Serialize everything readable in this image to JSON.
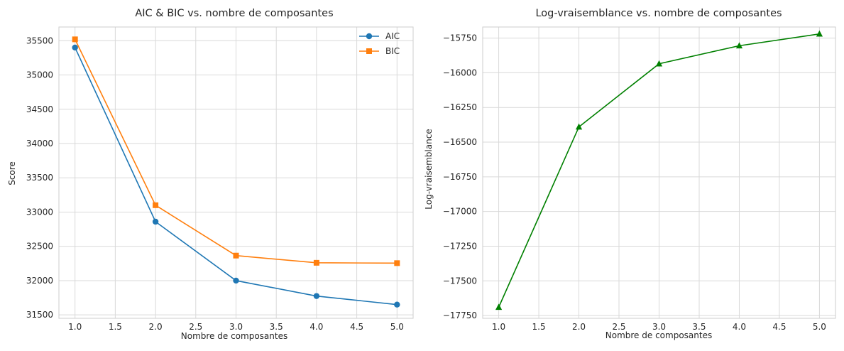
{
  "chart_data": [
    {
      "type": "line",
      "title": "AIC & BIC vs. nombre de composantes",
      "xlabel": "Nombre de composantes",
      "ylabel": "Score",
      "xlim": [
        0.8,
        5.2
      ],
      "ylim": [
        31450,
        35700
      ],
      "xticks": [
        1.0,
        1.5,
        2.0,
        2.5,
        3.0,
        3.5,
        4.0,
        4.5,
        5.0
      ],
      "xtick_labels": [
        "1.0",
        "1.5",
        "2.0",
        "2.5",
        "3.0",
        "3.5",
        "4.0",
        "4.5",
        "5.0"
      ],
      "yticks": [
        31500,
        32000,
        32500,
        33000,
        33500,
        34000,
        34500,
        35000,
        35500
      ],
      "ytick_labels": [
        "31500",
        "32000",
        "32500",
        "33000",
        "33500",
        "34000",
        "34500",
        "35000",
        "35500"
      ],
      "grid": true,
      "legend": "top-right",
      "x": [
        1,
        2,
        3,
        4,
        5
      ],
      "series": [
        {
          "name": "AIC",
          "values": [
            35400,
            32860,
            32000,
            31775,
            31650
          ],
          "color": "#1f77b4",
          "marker": "circle"
        },
        {
          "name": "BIC",
          "values": [
            35520,
            33100,
            32365,
            32260,
            32255
          ],
          "color": "#ff7f0e",
          "marker": "square"
        }
      ]
    },
    {
      "type": "line",
      "title": "Log-vraisemblance vs. nombre de composantes",
      "xlabel": "Nombre de composantes",
      "ylabel": "Log-vraisemblance",
      "xlim": [
        0.8,
        5.2
      ],
      "ylim": [
        -17770,
        -15670
      ],
      "xticks": [
        1.0,
        1.5,
        2.0,
        2.5,
        3.0,
        3.5,
        4.0,
        4.5,
        5.0
      ],
      "xtick_labels": [
        "1.0",
        "1.5",
        "2.0",
        "2.5",
        "3.0",
        "3.5",
        "4.0",
        "4.5",
        "5.0"
      ],
      "yticks": [
        -17750,
        -17500,
        -17250,
        -17000,
        -16750,
        -16500,
        -16250,
        -16000,
        -15750
      ],
      "ytick_labels": [
        "−17750",
        "−17500",
        "−17250",
        "−17000",
        "−16750",
        "−16500",
        "−16250",
        "−16000",
        "−15750"
      ],
      "grid": true,
      "x": [
        1,
        2,
        3,
        4,
        5
      ],
      "series": [
        {
          "values": [
            -17690,
            -16390,
            -15935,
            -15805,
            -15720
          ],
          "color": "#008000",
          "marker": "triangle"
        }
      ]
    }
  ]
}
